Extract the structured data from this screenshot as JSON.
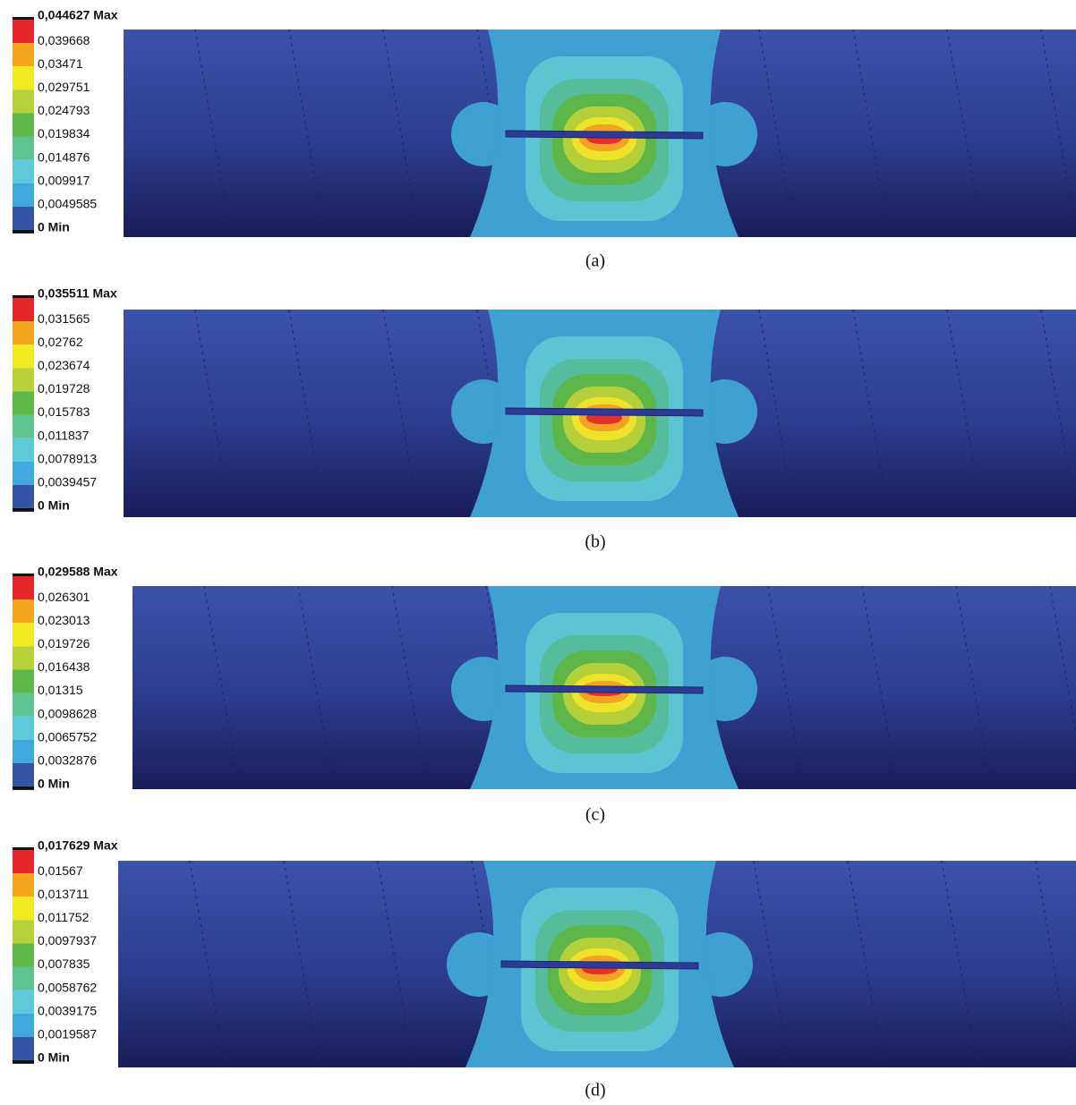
{
  "panels": [
    {
      "legend": [
        "0,044627 Max",
        "0,039668",
        "0,03471",
        "0,029751",
        "0,024793",
        "0,019834",
        "0,014876",
        "0,009917",
        "0,0049585",
        "0 Min"
      ],
      "caption": "(a)"
    },
    {
      "legend": [
        "0,035511 Max",
        "0,031565",
        "0,02762",
        "0,023674",
        "0,019728",
        "0,015783",
        "0,011837",
        "0,0078913",
        "0,0039457",
        "0 Min"
      ],
      "caption": "(b)"
    },
    {
      "legend": [
        "0,029588 Max",
        "0,026301",
        "0,023013",
        "0,019726",
        "0,016438",
        "0,01315",
        "0,0098628",
        "0,0065752",
        "0,0032876",
        "0 Min"
      ],
      "caption": "(c)"
    },
    {
      "legend": [
        "0,017629 Max",
        "0,01567",
        "0,013711",
        "0,011752",
        "0,0097937",
        "0,007835",
        "0,0058762",
        "0,0039175",
        "0,0019587",
        "0 Min"
      ],
      "caption": "(d)"
    }
  ]
}
